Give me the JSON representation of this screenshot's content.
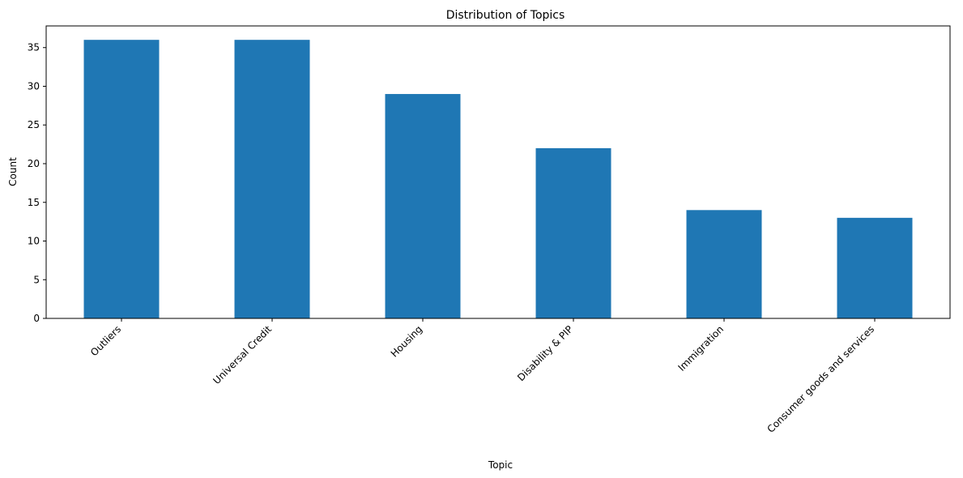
{
  "chart_data": {
    "type": "bar",
    "title": "Distribution of Topics",
    "xlabel": "Topic",
    "ylabel": "Count",
    "categories": [
      "Outliers",
      "Universal Credit",
      "Housing",
      "Disability & PIP",
      "Immigration",
      "Consumer goods and services"
    ],
    "values": [
      36,
      36,
      29,
      22,
      14,
      13
    ],
    "ylim": [
      0,
      37.8
    ],
    "yticks": [
      0,
      5,
      10,
      15,
      20,
      25,
      30,
      35
    ],
    "bar_color": "#1f77b4",
    "grid": false,
    "legend": "none"
  }
}
